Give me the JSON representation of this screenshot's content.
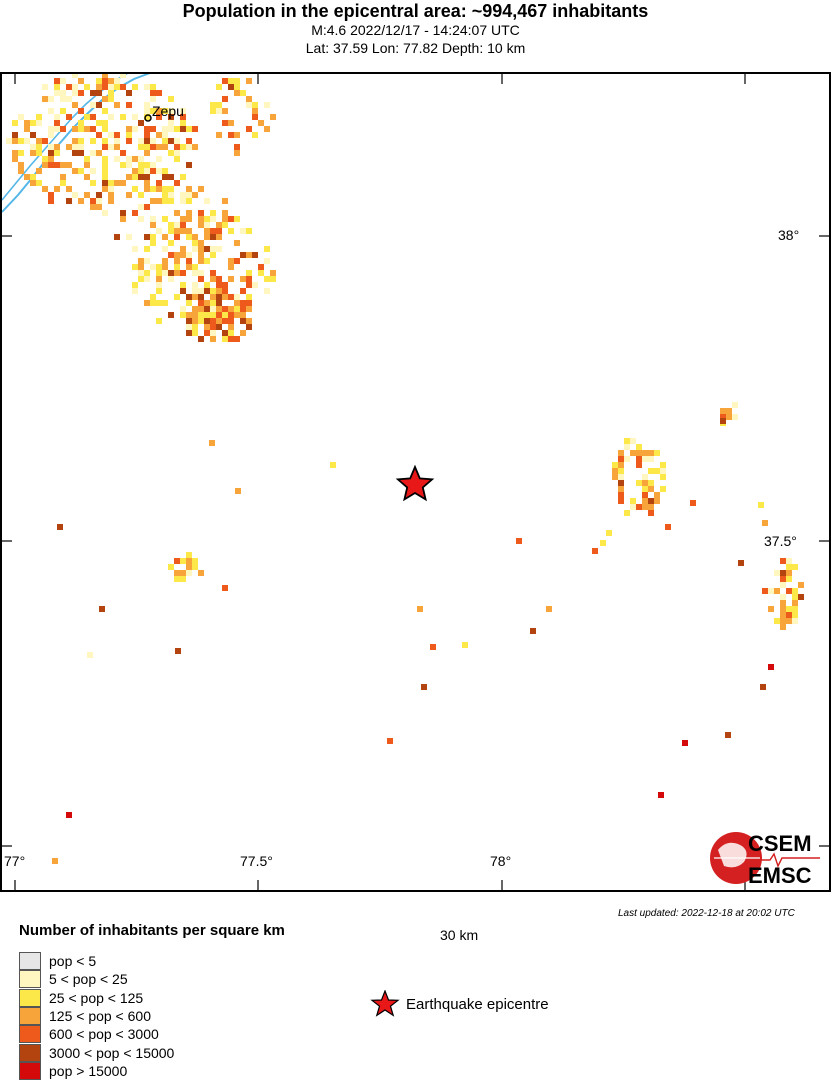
{
  "header": {
    "title": "Population in the epicentral area: ~994,467 inhabitants",
    "line1": "M:4.6 2022/12/17 - 14:24:07 UTC",
    "line2": "Lat: 37.59 Lon: 77.82 Depth: 10 km"
  },
  "map": {
    "lon_labels": [
      "77°",
      "77.5°",
      "78°"
    ],
    "lat_labels": [
      "38°",
      "37.5°"
    ],
    "place_name": "Zepu",
    "logo_top": "CSEM",
    "logo_bottom": "EMSC",
    "colors": {
      "river": "#55b7e8",
      "epicentre": "#e81818",
      "logo": "#d42020"
    }
  },
  "scale": {
    "label": "30 km"
  },
  "updated": "Last updated: 2022-12-18 at 20:02 UTC",
  "legend": {
    "title": "Number of inhabitants per square km",
    "items": [
      {
        "label": "pop < 5",
        "color": "#e6e6e6"
      },
      {
        "label": "5 < pop < 25",
        "color": "#fff7bf"
      },
      {
        "label": "25 < pop < 125",
        "color": "#fde84a"
      },
      {
        "label": "125 < pop < 600",
        "color": "#f7a53a"
      },
      {
        "label": "600 < pop < 3000",
        "color": "#ee5a1c"
      },
      {
        "label": "3000 < pop < 15000",
        "color": "#b4440f"
      },
      {
        "label": "pop > 15000",
        "color": "#d40a0a"
      }
    ]
  },
  "epicentre_legend": "Earthquake epicentre"
}
